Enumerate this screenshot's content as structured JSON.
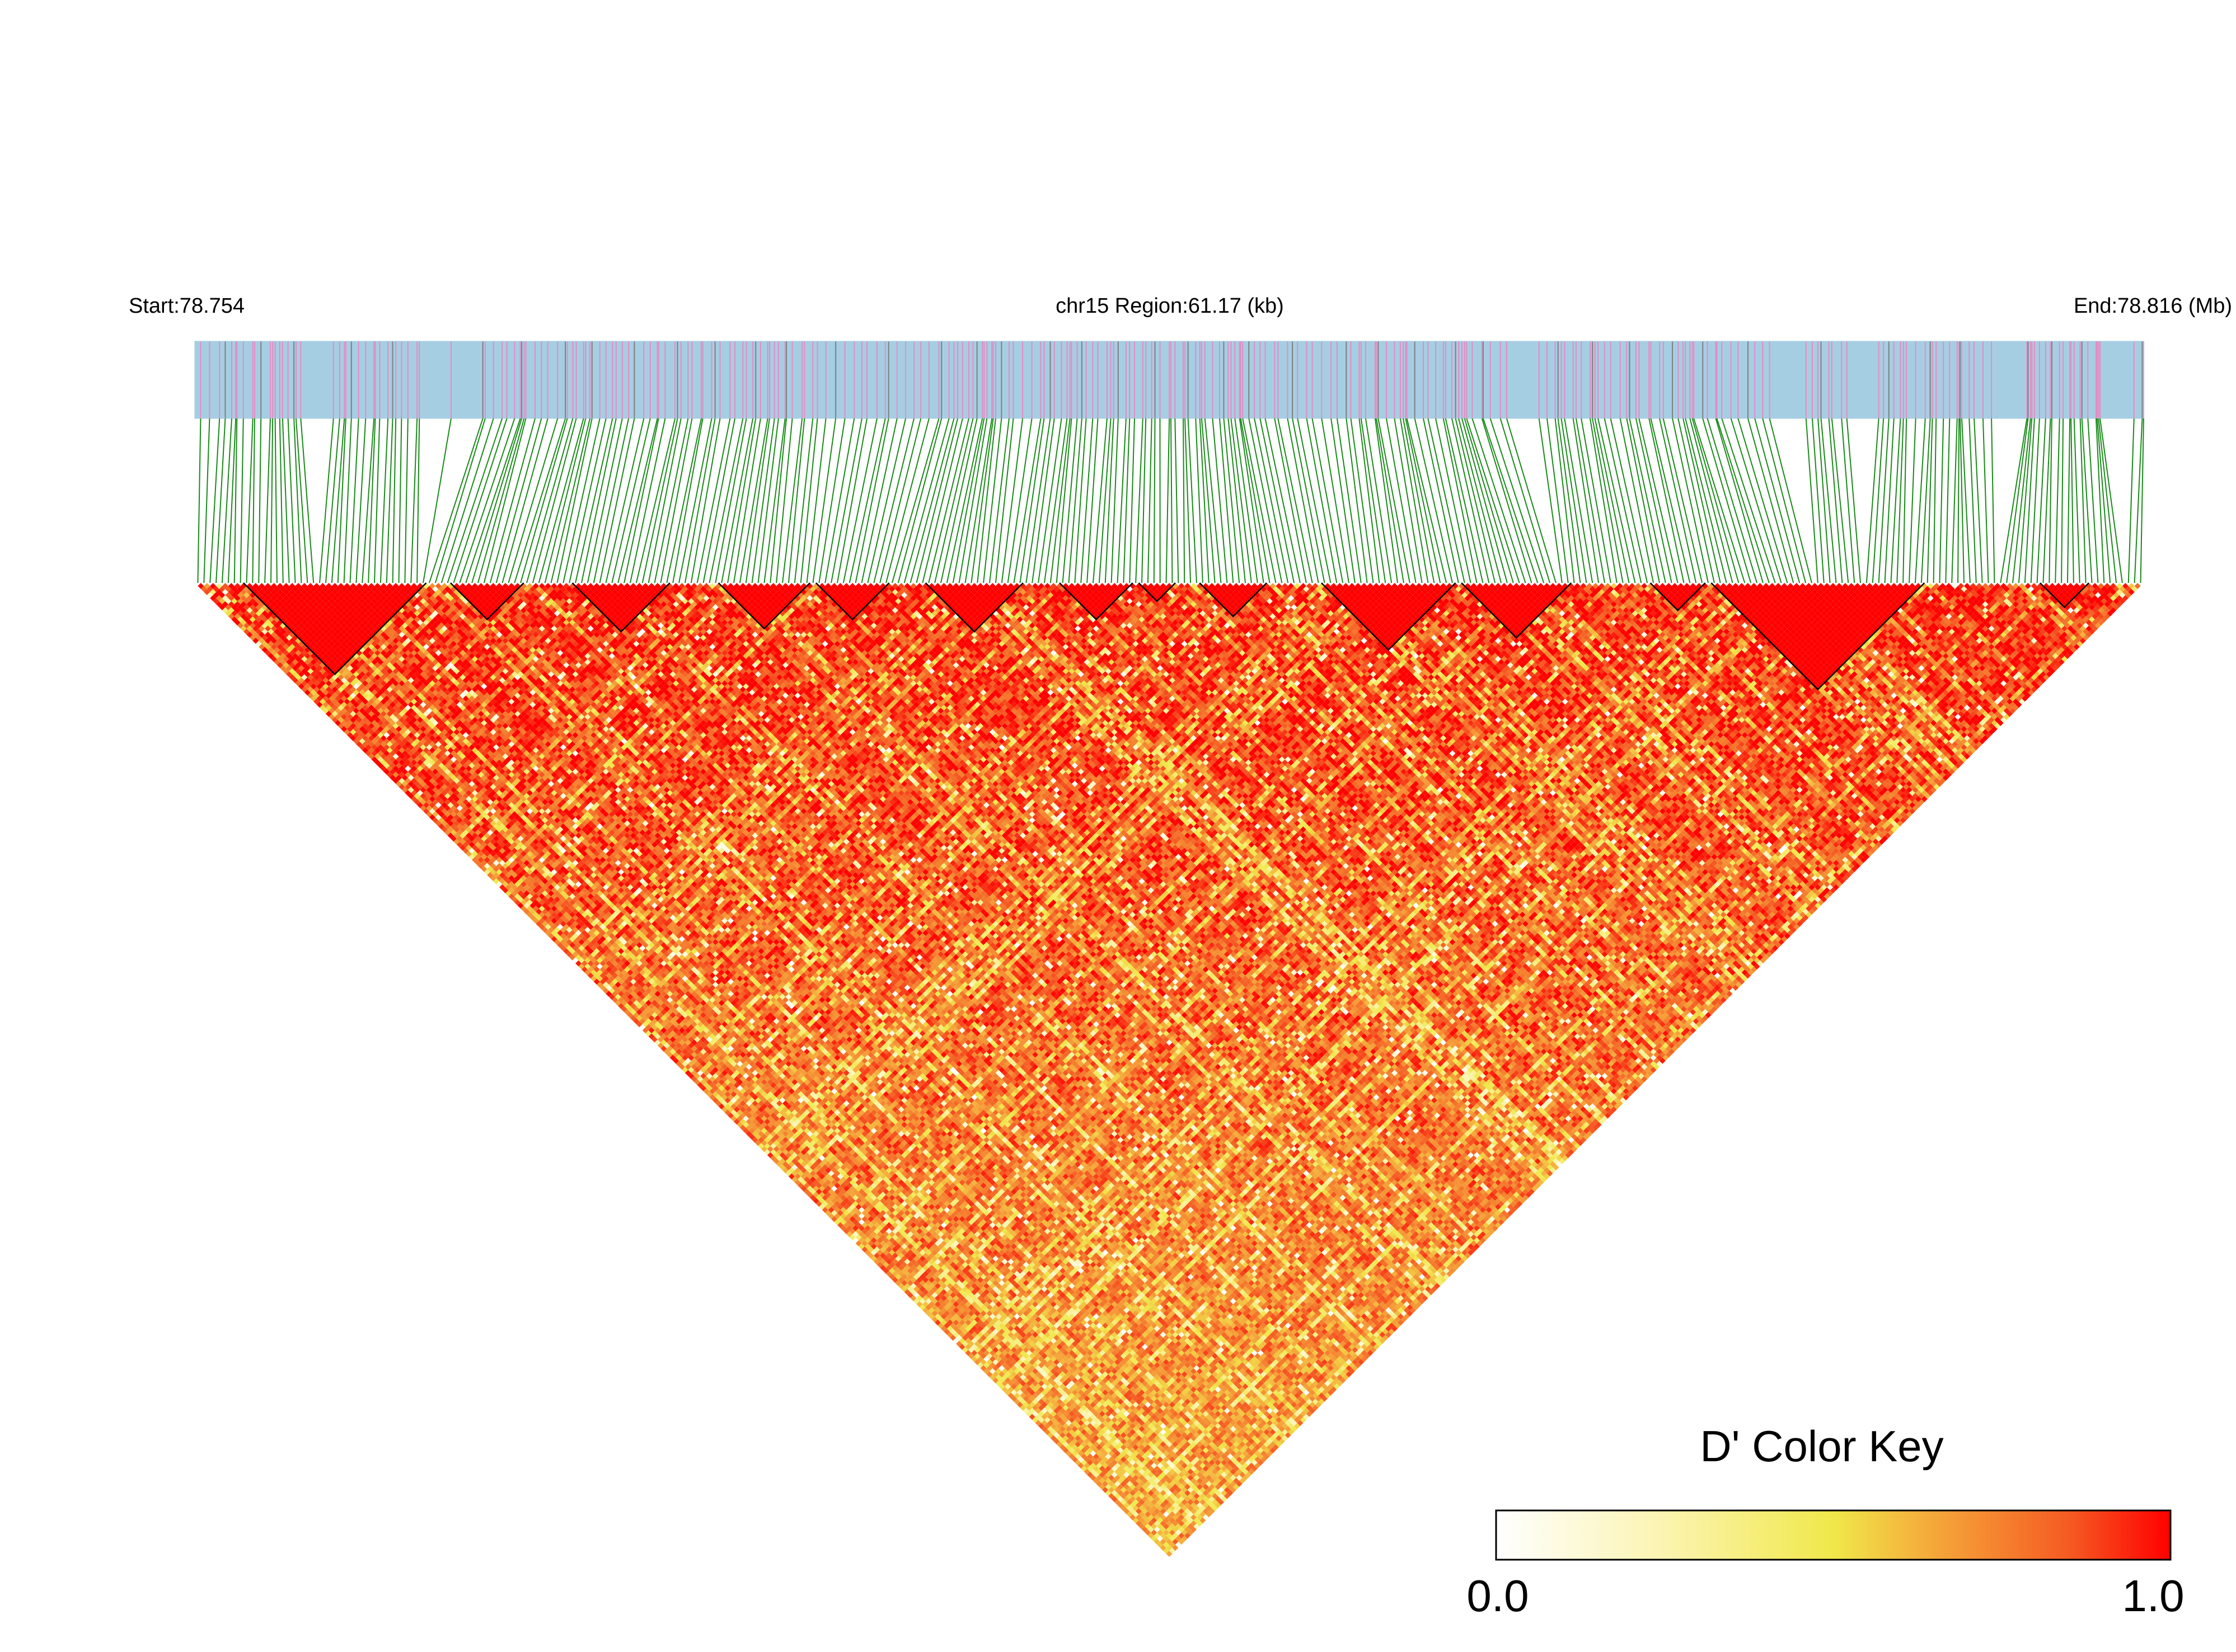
{
  "chart_data": {
    "type": "heatmap",
    "subtype": "linkage-disequilibrium triangle",
    "title": "",
    "header": {
      "start_label": "Start:78.754",
      "region_label": "chr15 Region:61.17 (kb)",
      "end_label": "End:78.816 (Mb)"
    },
    "region": {
      "chromosome": "chr15",
      "start_mb": 78.754,
      "end_mb": 78.816,
      "length_kb": 61.17
    },
    "snp_count": 320,
    "colors": {
      "track_background": "#a6cee3",
      "track_line_pink": "#e78ac3",
      "track_line_gray": "#7f7f7f",
      "connector": "#1a8a1a",
      "block_outline": "#000000",
      "scale": [
        "#ffffff",
        "#fbf4b0",
        "#f0e84a",
        "#f5a73a",
        "#f55a22",
        "#ff0000"
      ]
    },
    "ld_blocks": [
      {
        "from": 8,
        "to": 37
      },
      {
        "from": 42,
        "to": 53
      },
      {
        "from": 62,
        "to": 77
      },
      {
        "from": 86,
        "to": 100
      },
      {
        "from": 102,
        "to": 113
      },
      {
        "from": 120,
        "to": 135
      },
      {
        "from": 142,
        "to": 153
      },
      {
        "from": 155,
        "to": 160
      },
      {
        "from": 165,
        "to": 175
      },
      {
        "from": 185,
        "to": 206
      },
      {
        "from": 208,
        "to": 225
      },
      {
        "from": 239,
        "to": 247
      },
      {
        "from": 249,
        "to": 283
      },
      {
        "from": 303,
        "to": 310
      }
    ],
    "color_key": {
      "title": "D' Color Key",
      "min_label": "0.0",
      "max_label": "1.0",
      "range": [
        0,
        1
      ]
    }
  }
}
